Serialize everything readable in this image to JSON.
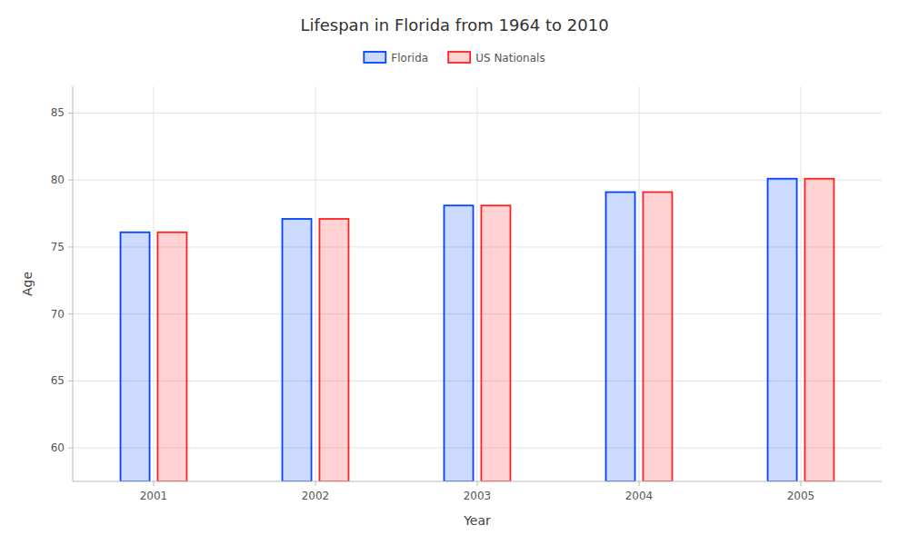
{
  "chart_data": {
    "type": "bar",
    "title": "Lifespan in Florida from 1964 to 2010",
    "xlabel": "Year",
    "ylabel": "Age",
    "categories": [
      "2001",
      "2002",
      "2003",
      "2004",
      "2005"
    ],
    "series": [
      {
        "name": "Florida",
        "color": "#0044ff",
        "values": [
          76.1,
          77.1,
          78.1,
          79.1,
          80.1
        ]
      },
      {
        "name": "US Nationals",
        "color": "#ff2222",
        "values": [
          76.1,
          77.1,
          78.1,
          79.1,
          80.1
        ]
      }
    ],
    "ylim": [
      57.5,
      87
    ],
    "yticks": [
      60,
      65,
      70,
      75,
      80,
      85
    ],
    "grid": true,
    "legend": "top"
  }
}
